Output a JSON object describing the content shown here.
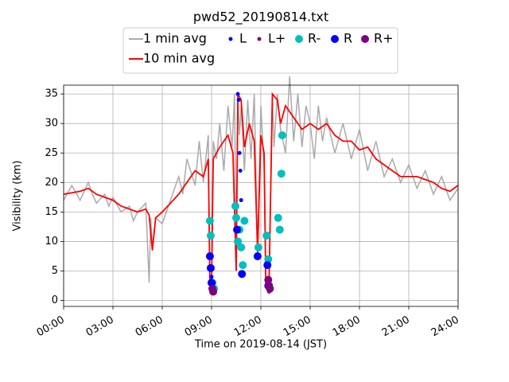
{
  "chart_data": {
    "type": "line",
    "title": "pwd52_20190814.txt",
    "xlabel": "Time on 2019-08-14 (JST)",
    "ylabel": "Visibility (km)",
    "xlim": [
      0,
      24
    ],
    "ylim": [
      -1,
      36.5
    ],
    "xticks": [
      {
        "value": 0,
        "label": "00:00"
      },
      {
        "value": 3,
        "label": "03:00"
      },
      {
        "value": 6,
        "label": "06:00"
      },
      {
        "value": 9,
        "label": "09:00"
      },
      {
        "value": 12,
        "label": "12:00"
      },
      {
        "value": 15,
        "label": "15:00"
      },
      {
        "value": 18,
        "label": "18:00"
      },
      {
        "value": 21,
        "label": "21:00"
      },
      {
        "value": 24,
        "label": "24:00"
      }
    ],
    "yticks": [
      0,
      5,
      10,
      15,
      20,
      25,
      30,
      35
    ],
    "grid": true,
    "series": [
      {
        "name": "1 min avg",
        "kind": "line",
        "color": "#aaaaaa",
        "x": [
          0,
          0.5,
          1,
          1.5,
          1.75,
          2,
          2.5,
          2.75,
          3,
          3.5,
          4,
          4.25,
          4.5,
          5,
          5.2,
          5.3,
          5.4,
          5.6,
          6,
          6.5,
          7,
          7.25,
          7.5,
          8,
          8.25,
          8.5,
          8.8,
          8.9,
          9.0,
          9.1,
          9.3,
          9.5,
          9.75,
          10,
          10.25,
          10.4,
          10.5,
          10.6,
          10.7,
          10.8,
          11,
          11.2,
          11.4,
          11.6,
          11.8,
          12,
          12.2,
          12.3,
          12.5,
          12.7,
          12.8,
          13,
          13.2,
          13.5,
          13.75,
          14,
          14.25,
          14.5,
          14.75,
          15,
          15.25,
          15.5,
          15.75,
          16,
          16.5,
          17,
          17.5,
          18,
          18.5,
          19,
          19.5,
          20,
          20.5,
          21,
          21.5,
          22,
          22.5,
          23,
          23.5,
          24
        ],
        "values": [
          17,
          19.5,
          17,
          20,
          18,
          16.5,
          18,
          16,
          17.5,
          15,
          16,
          13.5,
          15,
          16.5,
          3,
          14,
          9,
          14,
          13,
          17,
          21,
          18,
          24,
          19.5,
          27,
          20,
          28,
          3,
          2,
          27,
          24,
          30,
          22,
          33,
          26,
          35,
          5,
          35,
          28,
          33,
          22,
          34,
          24,
          35,
          8,
          33,
          22,
          3,
          2,
          35,
          26,
          35,
          29,
          25,
          38,
          27,
          35,
          26,
          33,
          30,
          24,
          33,
          27,
          31,
          25,
          30,
          24,
          29,
          22,
          27,
          21,
          24,
          20,
          23,
          19,
          22,
          18,
          21,
          17,
          19
        ]
      },
      {
        "name": "10 min avg",
        "kind": "line",
        "color": "#ff0000",
        "x": [
          0,
          1,
          1.5,
          2,
          2.5,
          3,
          3.5,
          4,
          4.5,
          5,
          5.2,
          5.4,
          5.6,
          6,
          6.5,
          7,
          7.5,
          8,
          8.5,
          8.8,
          8.9,
          9.0,
          9.1,
          9.5,
          10,
          10.3,
          10.5,
          10.6,
          10.8,
          11,
          11.3,
          11.6,
          11.8,
          12,
          12.2,
          12.3,
          12.5,
          12.7,
          13,
          13.2,
          13.5,
          14,
          14.5,
          15,
          15.5,
          16,
          16.5,
          17,
          17.5,
          18,
          18.5,
          19,
          19.5,
          20,
          20.5,
          21,
          21.5,
          22,
          22.5,
          23,
          23.5,
          24
        ],
        "values": [
          18,
          18.5,
          19,
          18,
          17.5,
          17,
          16,
          15.5,
          15,
          15.5,
          14.5,
          8.5,
          14,
          15,
          16.5,
          18,
          20,
          22,
          21,
          24,
          3,
          2,
          24,
          26,
          28,
          25,
          5,
          35,
          34,
          26,
          30,
          27,
          8,
          28,
          25,
          3,
          3,
          35,
          34,
          30,
          33,
          31,
          29,
          30,
          29,
          30,
          28,
          27,
          27,
          25.5,
          26,
          24,
          23,
          22,
          21,
          21,
          21,
          20.5,
          20,
          19,
          18.5,
          19.5
        ]
      },
      {
        "name": "L",
        "kind": "scatter",
        "color": "#0000ff",
        "size": 2.5,
        "x": [
          10.6,
          10.65,
          10.7,
          10.75,
          10.8,
          9.0
        ],
        "values": [
          35,
          34,
          25,
          22,
          17,
          4
        ]
      },
      {
        "name": "L+",
        "kind": "scatter",
        "color": "#800080",
        "size": 2.5,
        "x": [
          9.0,
          12.5
        ],
        "values": [
          1.5,
          1.5
        ]
      },
      {
        "name": "R-",
        "kind": "scatter",
        "color": "#00bfbf",
        "size": 5,
        "x": [
          8.9,
          8.95,
          9.05,
          9.15,
          10.45,
          10.5,
          10.6,
          10.7,
          10.8,
          10.9,
          11.0,
          11.85,
          12.35,
          12.45,
          13.05,
          13.15,
          13.25,
          13.3
        ],
        "values": [
          13.5,
          11,
          3,
          2,
          16,
          14,
          10,
          12,
          9,
          6,
          13.5,
          9,
          11,
          7,
          14,
          12,
          21.5,
          28
        ]
      },
      {
        "name": "R",
        "kind": "scatter",
        "color": "#0000ff",
        "size": 5,
        "x": [
          8.9,
          8.95,
          9.0,
          10.55,
          10.85,
          11.8,
          12.4,
          12.45
        ],
        "values": [
          7.5,
          5.5,
          3,
          12,
          4.5,
          7.5,
          6,
          2.5
        ]
      },
      {
        "name": "R+",
        "kind": "scatter",
        "color": "#800080",
        "size": 5,
        "x": [
          9.05,
          9.1,
          12.45,
          12.5,
          12.55
        ],
        "values": [
          2,
          1.5,
          3.5,
          2.5,
          2
        ]
      }
    ]
  }
}
